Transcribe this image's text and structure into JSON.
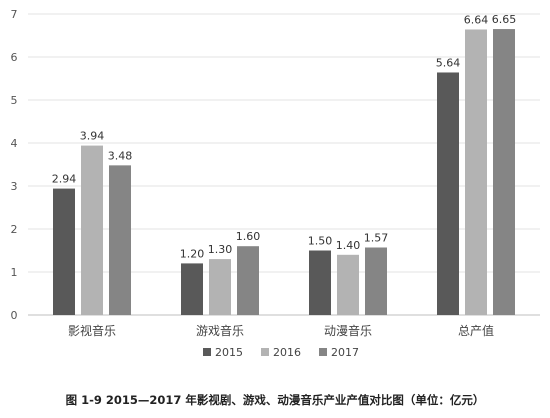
{
  "chart_data": {
    "type": "bar",
    "categories": [
      "影视音乐",
      "游戏音乐",
      "动漫音乐",
      "总产值"
    ],
    "series": [
      {
        "name": "2015",
        "values": [
          2.94,
          1.2,
          1.5,
          5.64
        ],
        "labels": [
          "2.94",
          "1.20",
          "1.50",
          "5.64"
        ],
        "color": "#595959"
      },
      {
        "name": "2016",
        "values": [
          3.94,
          1.3,
          1.4,
          6.64
        ],
        "labels": [
          "3.94",
          "1.30",
          "1.40",
          "6.64"
        ],
        "color": "#b3b3b3"
      },
      {
        "name": "2017",
        "values": [
          3.48,
          1.6,
          1.57,
          6.65
        ],
        "labels": [
          "3.48",
          "1.60",
          "1.57",
          "6.65"
        ],
        "color": "#858585"
      }
    ],
    "ylim": [
      0,
      7
    ],
    "yticks": [
      "0",
      "1",
      "2",
      "3",
      "4",
      "5",
      "6",
      "7"
    ],
    "grid": true,
    "legend_position": "bottom-center",
    "title": "图 1-9  2015—2017 年影视剧、游戏、动漫音乐产业产值对比图（单位：亿元）"
  }
}
